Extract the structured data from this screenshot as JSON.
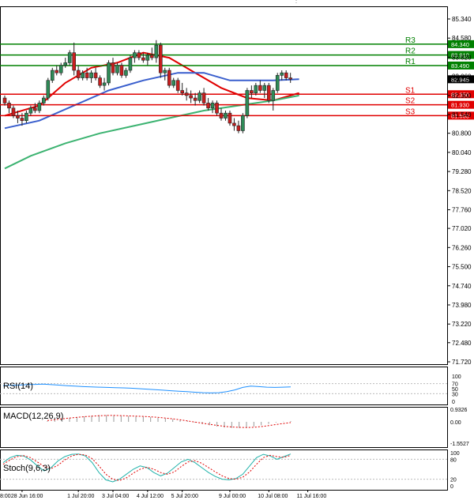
{
  "chart_data": {
    "type": "candlestick",
    "price_axis": {
      "ticks": [
        "85.340",
        "84.580",
        "83.820",
        "83.060",
        "82.300",
        "81.540",
        "80.800",
        "80.040",
        "79.280",
        "78.520",
        "77.760",
        "77.020",
        "76.260",
        "75.500",
        "74.740",
        "73.980",
        "73.220",
        "72.480",
        "71.720"
      ],
      "tick_values": [
        85.34,
        84.58,
        83.82,
        83.06,
        82.3,
        81.54,
        80.8,
        80.04,
        79.28,
        78.52,
        77.76,
        77.02,
        76.26,
        75.5,
        74.74,
        73.98,
        73.22,
        72.48,
        71.72
      ],
      "current_price": "82.945"
    },
    "time_axis": {
      "labels": [
        "28 Jun 16:00",
        "1 Jul 20:00",
        "3 Jul 04:00",
        "4 Jul 12:00",
        "5 Jul 20:00",
        "9 Jul 00:00",
        "10 Jul 08:00",
        "11 Jul 16:00"
      ],
      "clipped_start_label": "8:00",
      "label_bar_index": [
        4,
        17,
        25,
        33,
        41,
        52,
        61,
        70
      ]
    },
    "levels": [
      {
        "name": "R3",
        "value": 84.34,
        "text": "84.340",
        "color": "#008000"
      },
      {
        "name": "R2",
        "value": 83.91,
        "text": "83.910",
        "color": "#008000"
      },
      {
        "name": "R1",
        "value": 83.49,
        "text": "83.490",
        "color": "#008000"
      },
      {
        "name": "S1",
        "value": 82.35,
        "text": "82.350",
        "color": "#e00000"
      },
      {
        "name": "S2",
        "value": 81.93,
        "text": "81.930",
        "color": "#e00000"
      },
      {
        "name": "S3",
        "value": 81.5,
        "text": "81.500",
        "color": "#e00000"
      }
    ],
    "candles": [
      [
        82.2,
        82.3,
        81.9,
        82.0
      ],
      [
        82.0,
        82.1,
        81.6,
        81.8
      ],
      [
        81.8,
        81.9,
        81.4,
        81.5
      ],
      [
        81.5,
        81.7,
        81.2,
        81.4
      ],
      [
        81.4,
        81.6,
        81.1,
        81.3
      ],
      [
        81.3,
        81.7,
        81.2,
        81.6
      ],
      [
        81.6,
        81.9,
        81.5,
        81.8
      ],
      [
        81.8,
        82.0,
        81.6,
        81.7
      ],
      [
        81.7,
        82.1,
        81.6,
        82.0
      ],
      [
        82.0,
        82.3,
        81.9,
        82.2
      ],
      [
        82.2,
        83.0,
        82.1,
        82.9
      ],
      [
        82.9,
        83.4,
        82.8,
        83.3
      ],
      [
        83.3,
        83.5,
        83.1,
        83.2
      ],
      [
        83.2,
        83.6,
        83.1,
        83.5
      ],
      [
        83.5,
        83.8,
        83.4,
        83.6
      ],
      [
        83.6,
        84.1,
        83.5,
        84.0
      ],
      [
        84.0,
        84.4,
        83.1,
        83.3
      ],
      [
        83.3,
        83.5,
        82.9,
        83.0
      ],
      [
        83.0,
        83.3,
        82.9,
        83.2
      ],
      [
        83.2,
        83.4,
        82.9,
        83.0
      ],
      [
        83.0,
        83.3,
        82.8,
        83.2
      ],
      [
        83.2,
        83.4,
        82.9,
        83.0
      ],
      [
        83.0,
        83.1,
        82.6,
        82.7
      ],
      [
        82.7,
        83.0,
        82.5,
        82.8
      ],
      [
        82.8,
        83.7,
        82.7,
        83.6
      ],
      [
        83.6,
        83.8,
        83.1,
        83.2
      ],
      [
        83.2,
        83.6,
        83.1,
        83.5
      ],
      [
        83.5,
        83.6,
        83.0,
        83.1
      ],
      [
        83.1,
        83.4,
        83.0,
        83.3
      ],
      [
        83.3,
        83.9,
        83.2,
        83.8
      ],
      [
        83.8,
        84.1,
        83.6,
        84.0
      ],
      [
        84.0,
        84.1,
        83.7,
        83.8
      ],
      [
        83.8,
        84.0,
        83.6,
        83.7
      ],
      [
        83.7,
        84.0,
        83.5,
        83.9
      ],
      [
        83.9,
        84.2,
        83.7,
        83.8
      ],
      [
        83.8,
        84.5,
        83.6,
        84.3
      ],
      [
        84.3,
        84.4,
        83.0,
        83.2
      ],
      [
        83.2,
        83.4,
        82.9,
        83.3
      ],
      [
        83.3,
        83.4,
        82.6,
        82.7
      ],
      [
        82.7,
        83.0,
        82.6,
        82.9
      ],
      [
        82.9,
        83.0,
        82.4,
        82.5
      ],
      [
        82.5,
        82.8,
        82.3,
        82.4
      ],
      [
        82.4,
        82.6,
        82.1,
        82.3
      ],
      [
        82.3,
        82.5,
        82.0,
        82.2
      ],
      [
        82.2,
        82.4,
        81.9,
        82.1
      ],
      [
        82.1,
        82.5,
        82.0,
        82.4
      ],
      [
        82.4,
        82.6,
        81.9,
        82.0
      ],
      [
        82.0,
        82.2,
        81.7,
        81.8
      ],
      [
        81.8,
        82.1,
        81.6,
        82.0
      ],
      [
        82.0,
        82.1,
        81.5,
        81.6
      ],
      [
        81.6,
        81.8,
        81.3,
        81.4
      ],
      [
        81.4,
        81.7,
        81.3,
        81.6
      ],
      [
        81.6,
        81.7,
        81.1,
        81.2
      ],
      [
        81.2,
        81.4,
        80.9,
        81.1
      ],
      [
        81.1,
        81.3,
        80.8,
        80.9
      ],
      [
        80.9,
        81.6,
        80.8,
        81.5
      ],
      [
        81.5,
        82.6,
        81.4,
        82.5
      ],
      [
        82.5,
        82.7,
        82.2,
        82.4
      ],
      [
        82.4,
        82.8,
        82.3,
        82.7
      ],
      [
        82.7,
        82.9,
        82.4,
        82.5
      ],
      [
        82.5,
        82.8,
        82.2,
        82.7
      ],
      [
        82.7,
        82.8,
        82.0,
        82.1
      ],
      [
        82.1,
        82.6,
        81.7,
        82.5
      ],
      [
        82.5,
        83.2,
        82.4,
        83.1
      ],
      [
        83.1,
        83.3,
        82.9,
        83.2
      ],
      [
        83.2,
        83.3,
        82.9,
        83.0
      ],
      [
        83.0,
        83.2,
        82.8,
        82.95
      ]
    ],
    "moving_averages": [
      {
        "color": "#e00000",
        "points": [
          [
            0,
            81.5
          ],
          [
            8,
            81.9
          ],
          [
            14,
            82.8
          ],
          [
            20,
            83.4
          ],
          [
            26,
            83.6
          ],
          [
            32,
            84.0
          ],
          [
            38,
            83.8
          ],
          [
            44,
            83.2
          ],
          [
            50,
            82.6
          ],
          [
            56,
            82.2
          ],
          [
            62,
            82.1
          ],
          [
            68,
            82.4
          ]
        ]
      },
      {
        "color": "#3a5fcd",
        "points": [
          [
            0,
            81.0
          ],
          [
            8,
            81.3
          ],
          [
            16,
            81.9
          ],
          [
            24,
            82.5
          ],
          [
            32,
            82.9
          ],
          [
            40,
            83.2
          ],
          [
            46,
            83.2
          ],
          [
            52,
            82.9
          ],
          [
            58,
            82.9
          ],
          [
            62,
            82.9
          ],
          [
            68,
            82.95
          ]
        ]
      },
      {
        "color": "#3cb371",
        "points": [
          [
            0,
            79.4
          ],
          [
            6,
            79.9
          ],
          [
            14,
            80.4
          ],
          [
            22,
            80.8
          ],
          [
            30,
            81.1
          ],
          [
            38,
            81.4
          ],
          [
            46,
            81.7
          ],
          [
            54,
            81.9
          ],
          [
            62,
            82.1
          ],
          [
            68,
            82.3
          ]
        ]
      }
    ],
    "rsi": {
      "label": "RSI(14)",
      "ticks": [
        "100",
        "70",
        "50",
        "30",
        "0"
      ],
      "tick_values": [
        100,
        70,
        50,
        30,
        0
      ],
      "values": [
        62,
        63,
        64,
        66,
        67,
        68,
        66,
        64,
        62,
        60,
        58,
        57,
        56,
        55,
        54,
        53,
        52,
        50,
        48,
        46,
        44,
        42,
        40,
        38,
        36,
        34,
        33,
        34,
        38,
        45,
        55,
        60,
        58,
        56,
        55,
        56,
        57
      ]
    },
    "macd": {
      "label": "MACD(12,26,9)",
      "ticks": [
        "0.9326",
        "0.00",
        "-1.5527"
      ],
      "tick_values": [
        0.9326,
        0.0,
        -1.5527
      ],
      "hist": [
        0.05,
        0.1,
        0.2,
        0.3,
        0.35,
        0.4,
        0.45,
        0.5,
        0.5,
        0.48,
        0.45,
        0.42,
        0.4,
        0.38,
        0.35,
        0.3,
        0.25,
        0.2,
        0.12,
        0.05,
        -0.05,
        -0.15,
        -0.25,
        -0.35,
        -0.42,
        -0.45,
        -0.45,
        -0.42,
        -0.35,
        -0.25,
        -0.15,
        -0.05,
        0.02,
        0.05
      ],
      "signal": [
        0.1,
        0.15,
        0.22,
        0.28,
        0.33,
        0.38,
        0.42,
        0.45,
        0.47,
        0.47,
        0.46,
        0.44,
        0.42,
        0.4,
        0.37,
        0.33,
        0.28,
        0.22,
        0.15,
        0.07,
        -0.02,
        -0.1,
        -0.18,
        -0.26,
        -0.33,
        -0.38,
        -0.41,
        -0.42,
        -0.4,
        -0.35,
        -0.28,
        -0.2,
        -0.12,
        -0.05
      ]
    },
    "stoch": {
      "label": "Stoch(9,6,3)",
      "ticks": [
        "100",
        "80",
        "20",
        "0"
      ],
      "tick_values": [
        100,
        80,
        20,
        0
      ],
      "k": [
        70,
        85,
        92,
        90,
        78,
        60,
        45,
        55,
        75,
        88,
        95,
        96,
        90,
        70,
        40,
        18,
        12,
        20,
        35,
        50,
        60,
        55,
        40,
        30,
        38,
        55,
        72,
        80,
        70,
        55,
        40,
        28,
        20,
        18,
        22,
        35,
        60,
        85,
        95,
        90,
        80,
        88,
        96
      ],
      "d": [
        65,
        78,
        88,
        91,
        85,
        72,
        58,
        52,
        62,
        78,
        90,
        95,
        93,
        82,
        60,
        35,
        20,
        16,
        24,
        38,
        50,
        56,
        50,
        40,
        35,
        42,
        58,
        72,
        76,
        68,
        55,
        42,
        30,
        22,
        20,
        26,
        42,
        65,
        85,
        92,
        88,
        86,
        92
      ]
    }
  }
}
